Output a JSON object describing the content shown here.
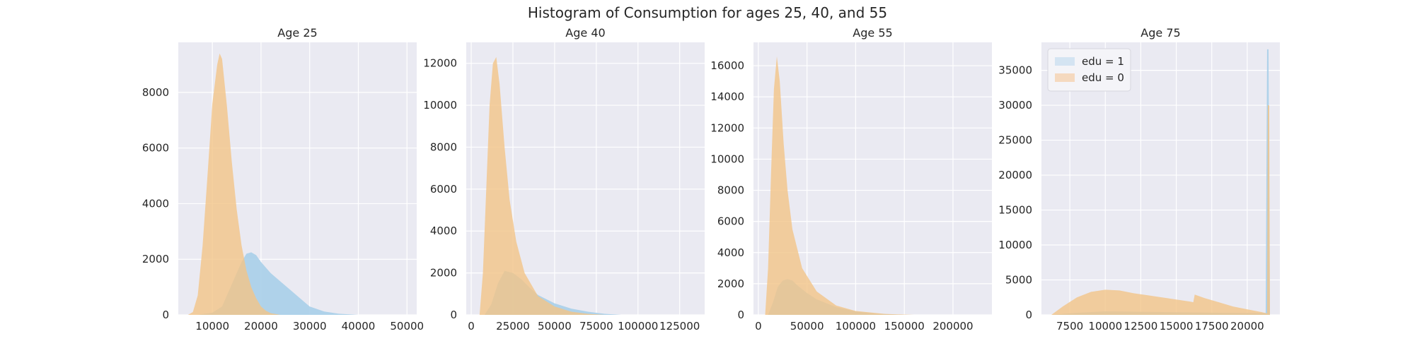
{
  "figure": {
    "title": "Histogram of Consumption for ages 25, 40, and 55"
  },
  "colors": {
    "plot_bg": "#eaeaf2",
    "grid": "#ffffff",
    "edu1": "#a9cfe9",
    "edu0": "#f3c487",
    "overlap": "#b9ba95"
  },
  "legend": {
    "entries": [
      {
        "label": "edu = 1",
        "color": "#d4e4f2"
      },
      {
        "label": "edu = 0",
        "color": "#f5d9bf"
      }
    ]
  },
  "chart_data": [
    {
      "type": "area",
      "title": "Age 25",
      "xlim": [
        3000,
        52000
      ],
      "ylim": [
        0,
        9800
      ],
      "xticks": [
        10000,
        20000,
        30000,
        40000,
        50000
      ],
      "xtick_labels": [
        "10000",
        "20000",
        "30000",
        "40000",
        "50000"
      ],
      "yticks": [
        0,
        2000,
        4000,
        6000,
        8000
      ],
      "ytick_labels": [
        "0",
        "2000",
        "4000",
        "6000",
        "8000"
      ],
      "series": [
        {
          "name": "edu = 1",
          "x": [
            7000,
            10000,
            12000,
            14000,
            16000,
            17000,
            18000,
            19000,
            20000,
            22000,
            24000,
            26000,
            28000,
            30000,
            33000,
            36000,
            40000
          ],
          "y": [
            0,
            80,
            300,
            1100,
            1900,
            2200,
            2250,
            2150,
            1900,
            1500,
            1200,
            900,
            600,
            300,
            120,
            40,
            0
          ]
        },
        {
          "name": "edu = 0",
          "x": [
            5000,
            6000,
            7000,
            8000,
            9000,
            10000,
            11000,
            11500,
            12000,
            13000,
            14000,
            15000,
            16000,
            17000,
            18000,
            19000,
            20000,
            21000,
            22000,
            24000
          ],
          "y": [
            0,
            100,
            700,
            2500,
            5000,
            7600,
            9000,
            9400,
            9200,
            7500,
            5500,
            3800,
            2500,
            1600,
            1000,
            600,
            300,
            150,
            60,
            0
          ]
        }
      ]
    },
    {
      "type": "area",
      "title": "Age 40",
      "xlim": [
        -3000,
        140000
      ],
      "ylim": [
        0,
        13000
      ],
      "xticks": [
        0,
        25000,
        50000,
        75000,
        100000,
        125000
      ],
      "xtick_labels": [
        "0",
        "25000",
        "50000",
        "75000",
        "100000",
        "125000"
      ],
      "yticks": [
        0,
        2000,
        4000,
        6000,
        8000,
        10000,
        12000
      ],
      "ytick_labels": [
        "0",
        "2000",
        "4000",
        "6000",
        "8000",
        "10000",
        "12000"
      ],
      "series": [
        {
          "name": "edu = 1",
          "x": [
            8000,
            12000,
            16000,
            20000,
            25000,
            30000,
            35000,
            40000,
            50000,
            60000,
            70000,
            80000,
            90000
          ],
          "y": [
            0,
            500,
            1500,
            2100,
            2000,
            1700,
            1300,
            950,
            550,
            300,
            150,
            50,
            0
          ]
        },
        {
          "name": "edu = 0",
          "x": [
            5000,
            7000,
            9000,
            11000,
            13000,
            15000,
            17000,
            20000,
            23000,
            27000,
            32000,
            40000,
            50000,
            60000,
            70000,
            80000
          ],
          "y": [
            0,
            2000,
            6000,
            10000,
            12000,
            12300,
            11000,
            8000,
            5500,
            3500,
            2000,
            900,
            400,
            150,
            50,
            0
          ]
        }
      ]
    },
    {
      "type": "area",
      "title": "Age 55",
      "xlim": [
        -5000,
        240000
      ],
      "ylim": [
        0,
        17500
      ],
      "xticks": [
        0,
        50000,
        100000,
        150000,
        200000
      ],
      "xtick_labels": [
        "0",
        "50000",
        "100000",
        "150000",
        "200000"
      ],
      "yticks": [
        0,
        2000,
        4000,
        6000,
        8000,
        10000,
        12000,
        14000,
        16000
      ],
      "ytick_labels": [
        "0",
        "2000",
        "4000",
        "6000",
        "8000",
        "10000",
        "12000",
        "14000",
        "16000"
      ],
      "series": [
        {
          "name": "edu = 1",
          "x": [
            10000,
            15000,
            20000,
            25000,
            30000,
            35000,
            40000,
            50000,
            60000,
            80000,
            100000,
            120000,
            150000
          ],
          "y": [
            0,
            800,
            1800,
            2200,
            2300,
            2200,
            1900,
            1400,
            1000,
            500,
            220,
            80,
            0
          ]
        },
        {
          "name": "edu = 0",
          "x": [
            7000,
            10000,
            13000,
            16000,
            19000,
            22000,
            26000,
            30000,
            35000,
            45000,
            60000,
            80000,
            100000,
            130000,
            160000
          ],
          "y": [
            0,
            3000,
            9000,
            14500,
            16600,
            15000,
            11000,
            8000,
            5500,
            3000,
            1500,
            600,
            250,
            60,
            0
          ]
        }
      ]
    },
    {
      "type": "area",
      "title": "Age 75",
      "xlim": [
        5500,
        22300
      ],
      "ylim": [
        0,
        39000
      ],
      "xticks": [
        7500,
        10000,
        12500,
        15000,
        17500,
        20000
      ],
      "xtick_labels": [
        "7500",
        "10000",
        "12500",
        "15000",
        "17500",
        "20000"
      ],
      "yticks": [
        0,
        5000,
        10000,
        15000,
        20000,
        25000,
        30000,
        35000
      ],
      "ytick_labels": [
        "0",
        "5000",
        "10000",
        "15000",
        "20000",
        "25000",
        "30000",
        "35000"
      ],
      "series": [
        {
          "name": "edu = 1",
          "x": [
            6200,
            8000,
            10000,
            12000,
            14000,
            16000,
            18000,
            20000,
            21300,
            21400,
            21500,
            21600
          ],
          "y": [
            0,
            300,
            500,
            450,
            400,
            350,
            300,
            280,
            260,
            38000,
            38000,
            0
          ]
        },
        {
          "name": "edu = 0",
          "x": [
            6200,
            7000,
            8000,
            9000,
            10000,
            11000,
            12000,
            13000,
            14000,
            15000,
            16000,
            16200,
            16300,
            17000,
            18000,
            19000,
            20000,
            21000,
            21400,
            21450,
            21550,
            21600
          ],
          "y": [
            0,
            1200,
            2500,
            3300,
            3600,
            3500,
            3100,
            2800,
            2500,
            2200,
            1900,
            1800,
            2900,
            2400,
            1800,
            1200,
            800,
            400,
            200,
            30000,
            30000,
            0
          ]
        }
      ]
    }
  ]
}
